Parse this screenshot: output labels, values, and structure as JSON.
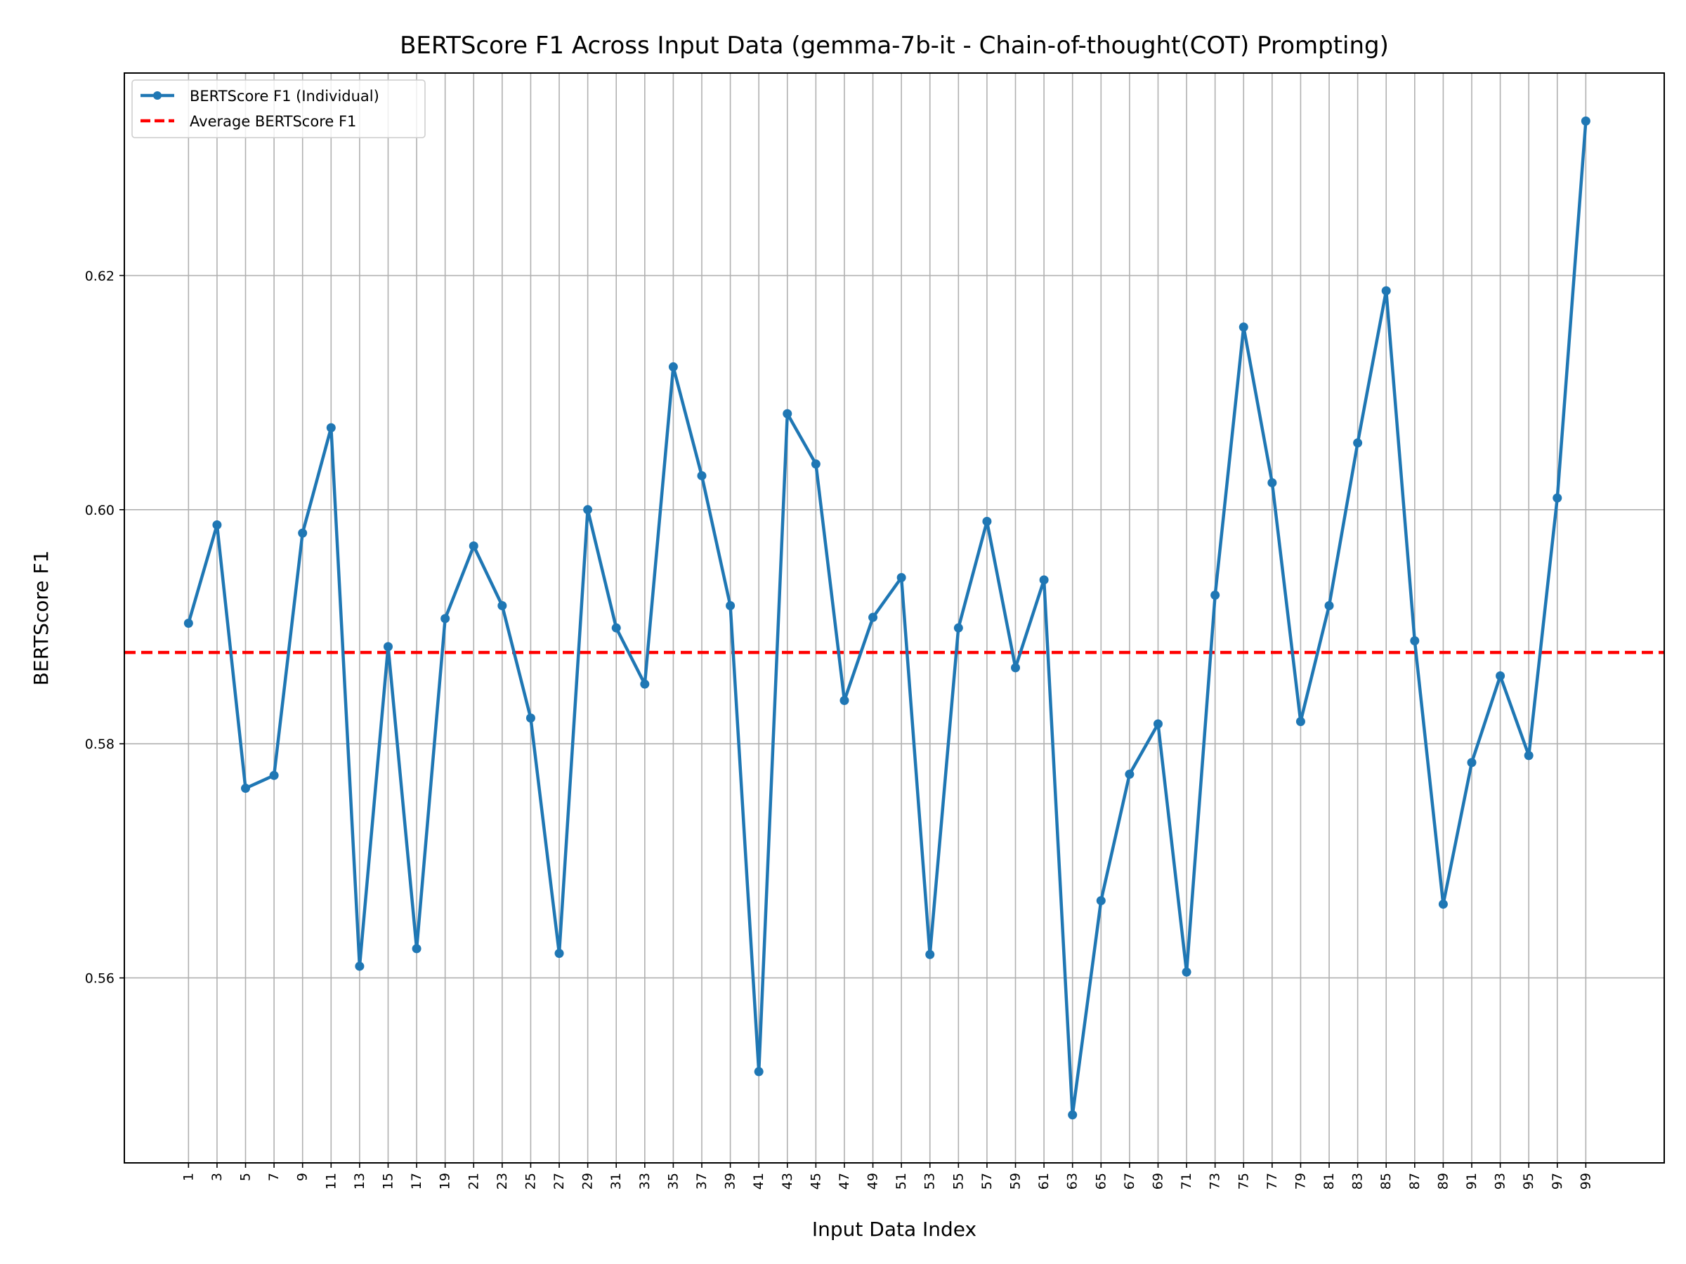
{
  "chart_data": {
    "type": "line",
    "title": "BERTScore F1 Across Input Data (gemma-7b-it - Chain-of-thought(COT) Prompting)",
    "xlabel": "Input Data Index",
    "ylabel": "BERTScore F1",
    "xlim": [
      -3.5,
      104.5
    ],
    "ylim": [
      0.5442,
      0.6373
    ],
    "yticks": [
      0.56,
      0.58,
      0.6,
      0.62
    ],
    "ytick_labels": [
      "0.56",
      "0.58",
      "0.60",
      "0.62"
    ],
    "xticks": [
      1,
      3,
      5,
      7,
      9,
      11,
      13,
      15,
      17,
      19,
      21,
      23,
      25,
      27,
      29,
      31,
      33,
      35,
      37,
      39,
      41,
      43,
      45,
      47,
      49,
      51,
      53,
      55,
      57,
      59,
      61,
      63,
      65,
      67,
      69,
      71,
      73,
      75,
      77,
      79,
      81,
      83,
      85,
      87,
      89,
      91,
      93,
      95,
      97,
      99
    ],
    "xtick_labels": [
      "1",
      "3",
      "5",
      "7",
      "9",
      "11",
      "13",
      "15",
      "17",
      "19",
      "21",
      "23",
      "25",
      "27",
      "29",
      "31",
      "33",
      "35",
      "37",
      "39",
      "41",
      "43",
      "45",
      "47",
      "49",
      "51",
      "53",
      "55",
      "57",
      "59",
      "61",
      "63",
      "65",
      "67",
      "69",
      "71",
      "73",
      "75",
      "77",
      "79",
      "81",
      "83",
      "85",
      "87",
      "89",
      "91",
      "93",
      "95",
      "97",
      "99"
    ],
    "grid": true,
    "legend_position": "top-left",
    "series": [
      {
        "name": "BERTScore F1 (Individual)",
        "color": "#1f77b4",
        "marker": "circle",
        "x": [
          1,
          3,
          5,
          7,
          9,
          11,
          13,
          15,
          17,
          19,
          21,
          23,
          25,
          27,
          29,
          31,
          33,
          35,
          37,
          39,
          41,
          43,
          45,
          47,
          49,
          51,
          53,
          55,
          57,
          59,
          61,
          63,
          65,
          67,
          69,
          71,
          73,
          75,
          77,
          79,
          81,
          83,
          85,
          87,
          89,
          91,
          93,
          95,
          97,
          99
        ],
        "values": [
          0.5903,
          0.5987,
          0.5762,
          0.5773,
          0.598,
          0.607,
          0.561,
          0.5883,
          0.5625,
          0.5907,
          0.5969,
          0.5918,
          0.5822,
          0.5621,
          0.6,
          0.5899,
          0.5851,
          0.6122,
          0.6029,
          0.5918,
          0.552,
          0.6082,
          0.6039,
          0.5837,
          0.5908,
          0.5942,
          0.562,
          0.5899,
          0.599,
          0.5865,
          0.594,
          0.5483,
          0.5666,
          0.5774,
          0.5817,
          0.5605,
          0.5927,
          0.6156,
          0.6023,
          0.5819,
          0.5918,
          0.6057,
          0.6187,
          0.5888,
          0.5663,
          0.5784,
          0.5858,
          0.579,
          0.601,
          0.6332
        ]
      },
      {
        "name": "Average BERTScore F1",
        "color": "#ff0000",
        "style": "dashed",
        "value": 0.5878
      }
    ]
  }
}
